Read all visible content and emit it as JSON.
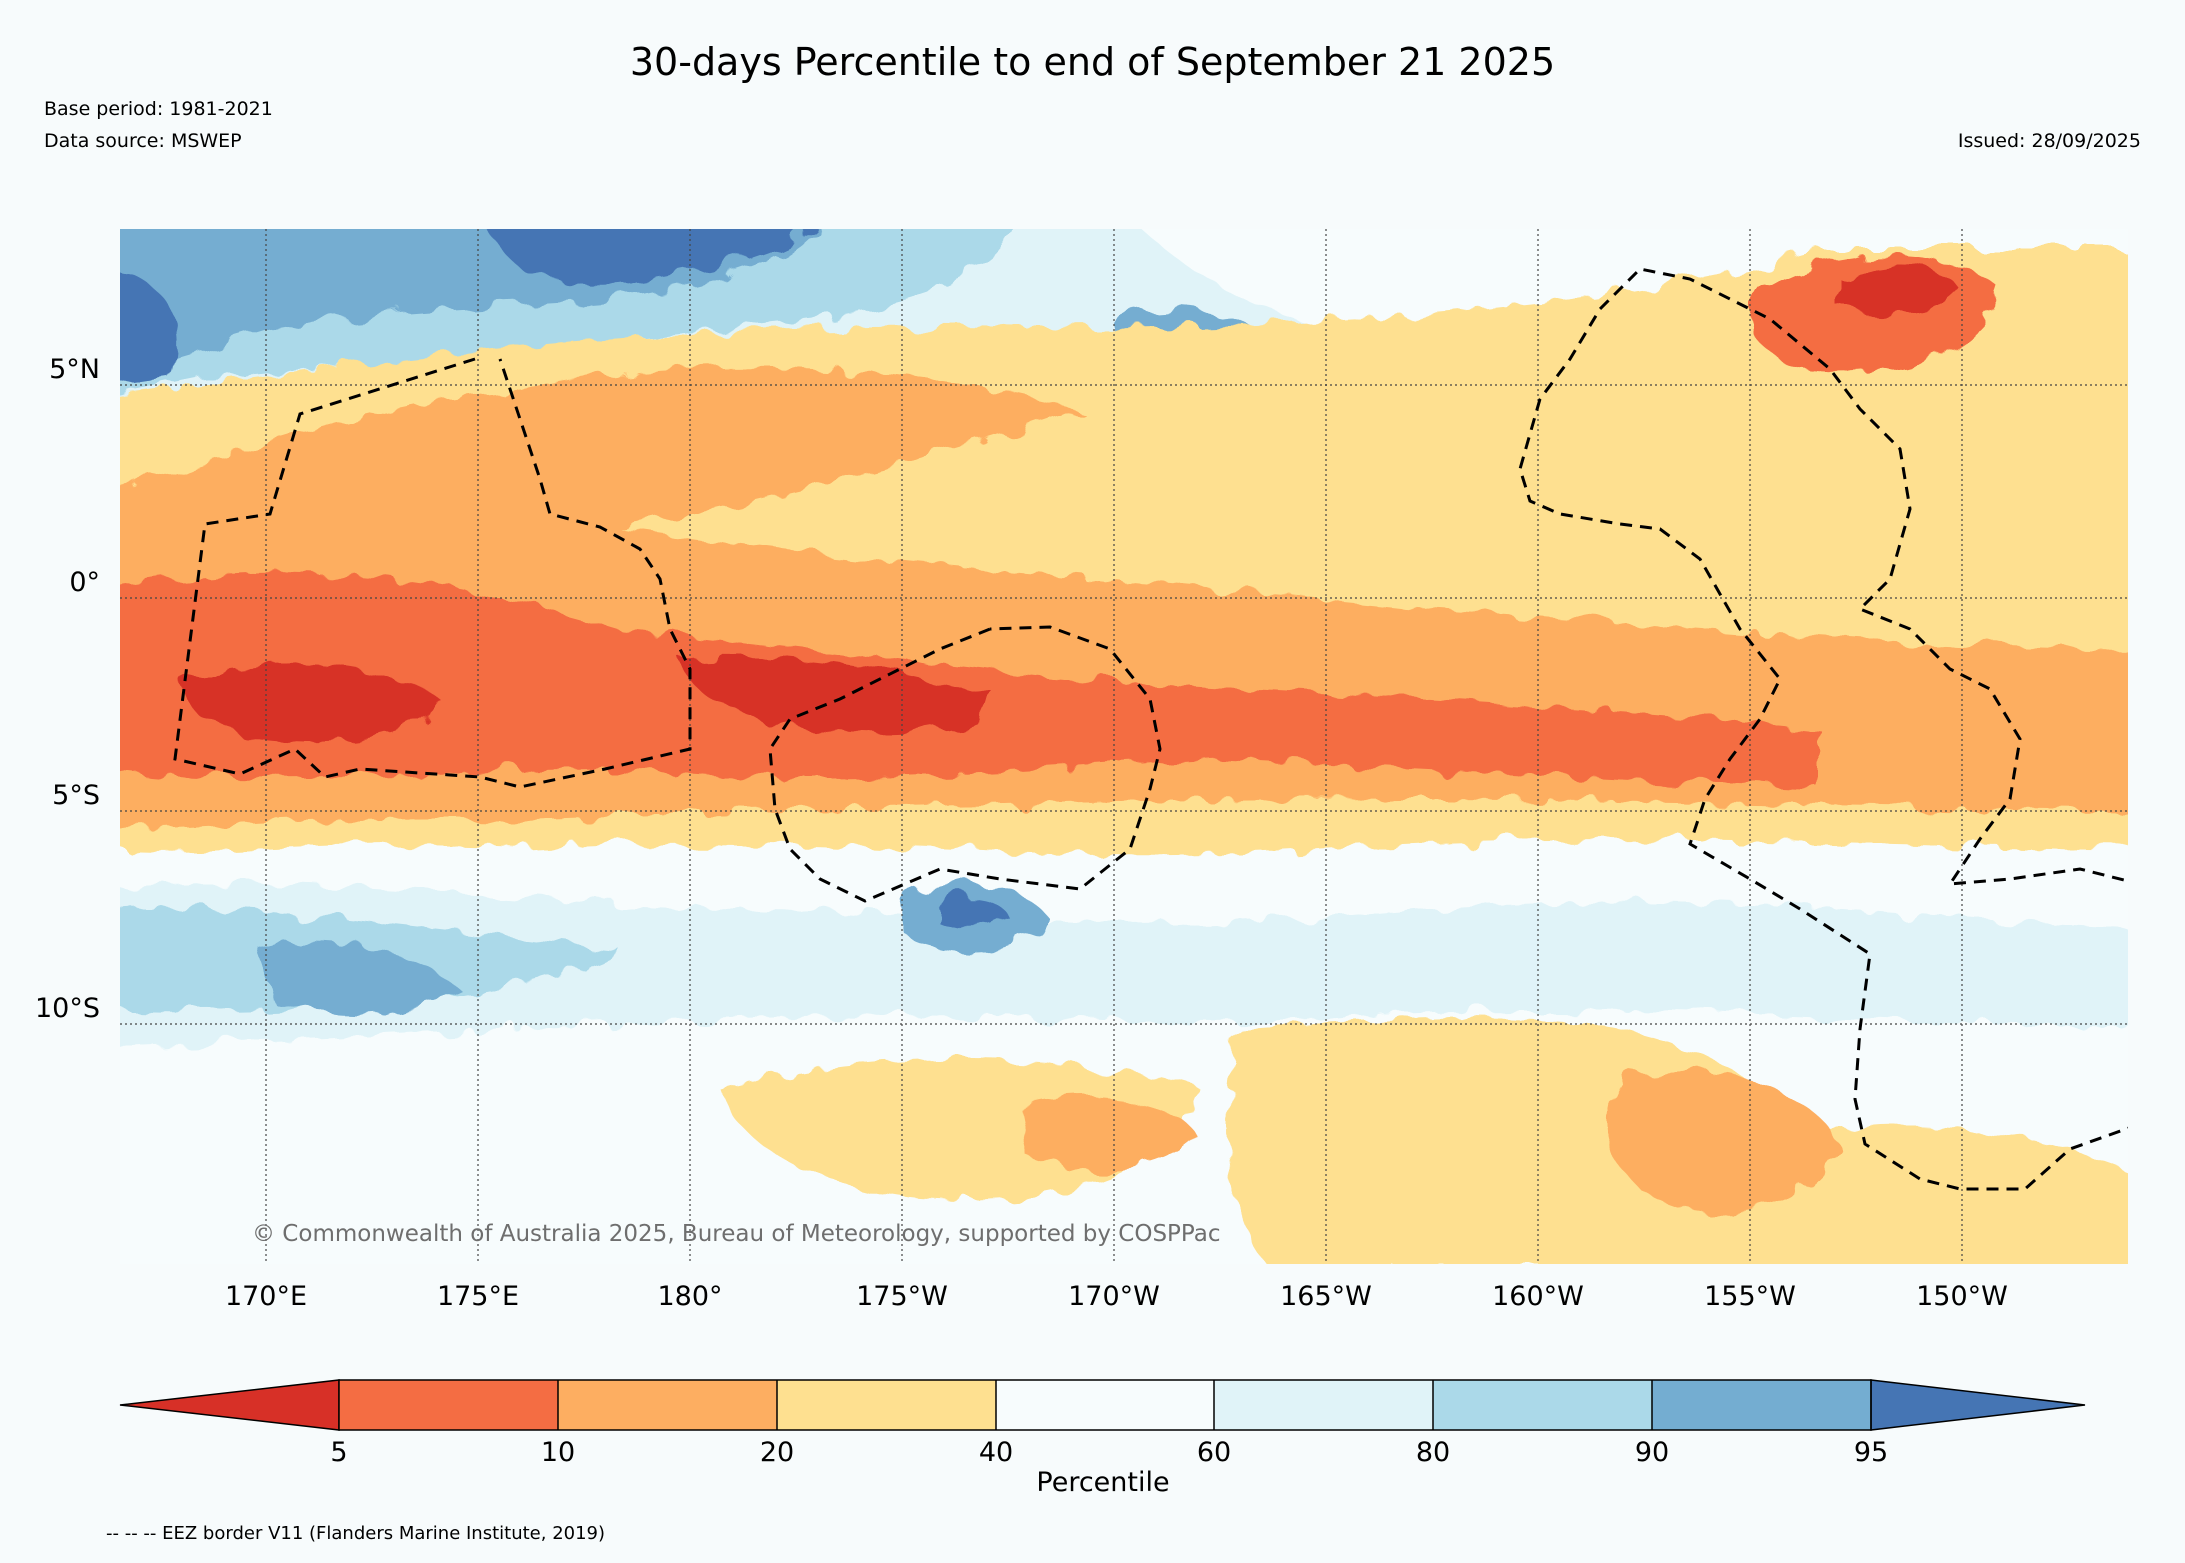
{
  "header": {
    "title": "30-days Percentile to end of September 21 2025",
    "base_period": "Base period: 1981-2021",
    "data_source": "Data source: MSWEP",
    "issued": "Issued: 28/09/2025"
  },
  "map": {
    "lat_labels": [
      "5°N",
      "0°",
      "5°S",
      "10°S"
    ],
    "lon_labels": [
      "170°E",
      "175°E",
      "180°",
      "175°W",
      "170°W",
      "165°W",
      "160°W",
      "155°W",
      "150°W"
    ],
    "copyright": "© Commonwealth of Australia 2025, Bureau of Meteorology, supported by COSPPac"
  },
  "colorbar": {
    "label": "Percentile",
    "ticks": [
      "5",
      "10",
      "20",
      "40",
      "60",
      "80",
      "90",
      "95"
    ],
    "colors": [
      "#d73027",
      "#f46d43",
      "#fdae61",
      "#fee090",
      "#f7fcfd",
      "#e0f3f8",
      "#abd9e9",
      "#74add1",
      "#4575b4"
    ]
  },
  "footer": {
    "eez_note": "-- -- -- EEZ border V11 (Flanders Marine Institute, 2019)"
  }
}
